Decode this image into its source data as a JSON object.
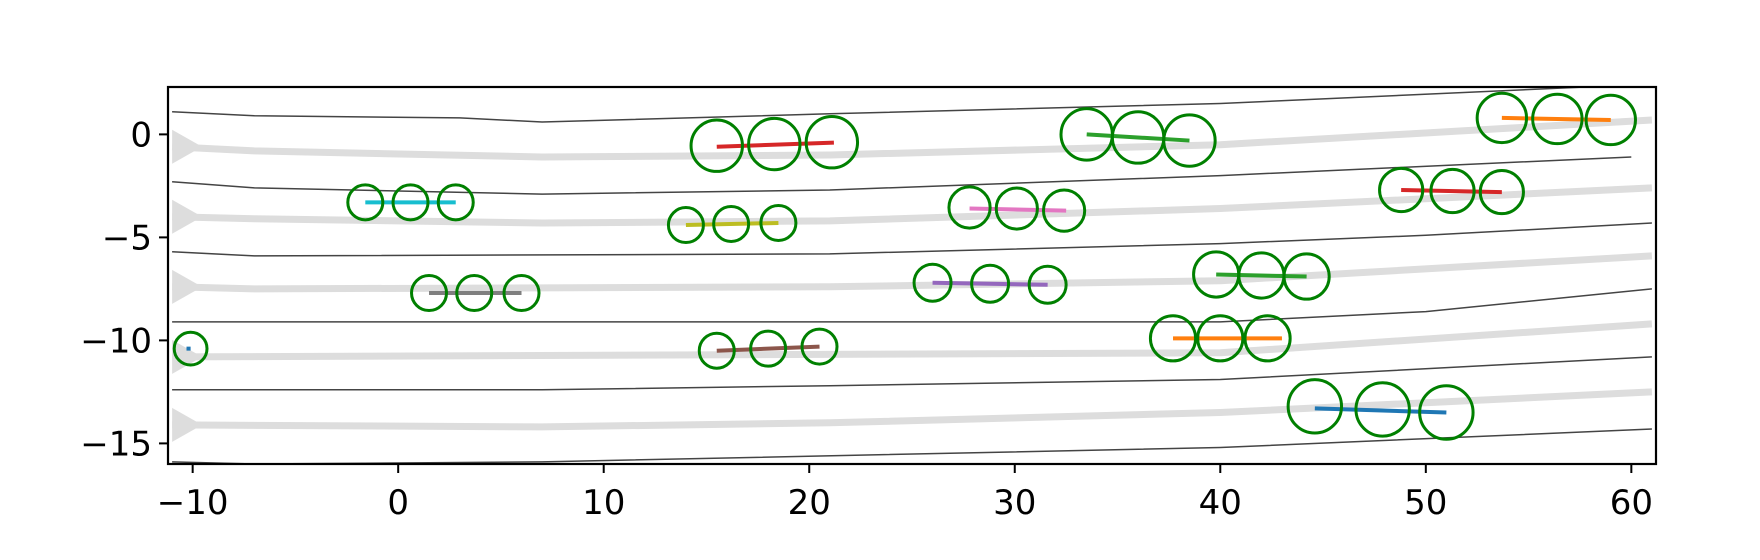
{
  "chart_data": {
    "type": "scatter",
    "title": "",
    "xlabel": "",
    "ylabel": "",
    "xlim": [
      -11.2,
      61.2
    ],
    "ylim": [
      -16.0,
      2.3
    ],
    "grid": false,
    "x_ticks": [
      -10,
      0,
      10,
      20,
      30,
      40,
      50,
      60
    ],
    "x_tick_labels": [
      "−10",
      "0",
      "10",
      "20",
      "30",
      "40",
      "50",
      "60"
    ],
    "y_ticks": [
      0,
      -5,
      -10,
      -15
    ],
    "y_tick_labels": [
      "0",
      "−5",
      "−10",
      "−15"
    ],
    "lane_boundaries": [
      [
        [
          -11,
          1.1
        ],
        [
          -7,
          0.9
        ],
        [
          3,
          0.8
        ],
        [
          7,
          0.6
        ],
        [
          21,
          1.0
        ],
        [
          40,
          1.5
        ],
        [
          60,
          2.4
        ]
      ],
      [
        [
          -11,
          -2.3
        ],
        [
          -7,
          -2.6
        ],
        [
          7,
          -2.9
        ],
        [
          21,
          -2.7
        ],
        [
          40,
          -2.0
        ],
        [
          60,
          -1.1
        ]
      ],
      [
        [
          -11,
          -5.7
        ],
        [
          -7,
          -5.9
        ],
        [
          21,
          -5.8
        ],
        [
          40,
          -5.3
        ],
        [
          50,
          -4.9
        ],
        [
          61,
          -4.3
        ]
      ],
      [
        [
          -11,
          -9.1
        ],
        [
          40,
          -9.1
        ],
        [
          50,
          -8.6
        ],
        [
          61,
          -7.5
        ]
      ],
      [
        [
          -11,
          -12.4
        ],
        [
          7,
          -12.4
        ],
        [
          21,
          -12.2
        ],
        [
          40,
          -11.9
        ],
        [
          61,
          -10.8
        ]
      ],
      [
        [
          -11,
          -15.9
        ],
        [
          -7,
          -16.0
        ],
        [
          7,
          -15.9
        ],
        [
          40,
          -15.2
        ],
        [
          61,
          -14.3
        ]
      ]
    ],
    "lane_centerlines": [
      [
        [
          -11,
          -0.6
        ],
        [
          -7,
          -0.8
        ],
        [
          7,
          -1.1
        ],
        [
          21,
          -1.0
        ],
        [
          40,
          -0.5
        ],
        [
          61,
          0.7
        ]
      ],
      [
        [
          -11,
          -4.0
        ],
        [
          -7,
          -4.1
        ],
        [
          7,
          -4.3
        ],
        [
          21,
          -4.2
        ],
        [
          40,
          -3.6
        ],
        [
          61,
          -2.6
        ]
      ],
      [
        [
          -11,
          -7.4
        ],
        [
          -7,
          -7.5
        ],
        [
          21,
          -7.4
        ],
        [
          40,
          -7.1
        ],
        [
          61,
          -5.9
        ]
      ],
      [
        [
          -11,
          -10.8
        ],
        [
          40,
          -10.6
        ],
        [
          61,
          -9.2
        ]
      ],
      [
        [
          -11,
          -14.1
        ],
        [
          7,
          -14.2
        ],
        [
          21,
          -14.0
        ],
        [
          40,
          -13.5
        ],
        [
          61,
          -12.5
        ]
      ]
    ],
    "lane_arrows_y": [
      -0.6,
      -4.0,
      -7.4,
      -10.8,
      -14.1
    ],
    "series": [
      {
        "color": "#d62728",
        "x": [
          15.5,
          21.2
        ],
        "y": [
          -0.6,
          -0.4
        ],
        "circles": {
          "x": [
            15.5,
            18.3,
            21.1
          ],
          "y": [
            -0.55,
            -0.47,
            -0.38
          ],
          "r": 1.25
        }
      },
      {
        "color": "#2ca02c",
        "x": [
          33.5,
          38.5
        ],
        "y": [
          0.0,
          -0.3
        ],
        "circles": {
          "x": [
            33.5,
            36.0,
            38.5
          ],
          "y": [
            0.0,
            -0.15,
            -0.3
          ],
          "r": 1.25
        }
      },
      {
        "color": "#ff7f0e",
        "x": [
          53.7,
          59.0
        ],
        "y": [
          0.8,
          0.7
        ],
        "circles": {
          "x": [
            53.7,
            56.4,
            59.0
          ],
          "y": [
            0.8,
            0.75,
            0.7
          ],
          "r": 1.2
        }
      },
      {
        "color": "#17becf",
        "x": [
          -1.6,
          2.8
        ],
        "y": [
          -3.3,
          -3.3
        ],
        "circles": {
          "x": [
            -1.6,
            0.6,
            2.8
          ],
          "y": [
            -3.3,
            -3.3,
            -3.3
          ],
          "r": 0.85
        }
      },
      {
        "color": "#bcbd22",
        "x": [
          14.0,
          18.5
        ],
        "y": [
          -4.4,
          -4.3
        ],
        "circles": {
          "x": [
            14.0,
            16.2,
            18.5
          ],
          "y": [
            -4.4,
            -4.35,
            -4.3
          ],
          "r": 0.85
        }
      },
      {
        "color": "#e377c2",
        "x": [
          27.8,
          32.5
        ],
        "y": [
          -3.6,
          -3.7
        ],
        "circles": {
          "x": [
            27.8,
            30.1,
            32.4
          ],
          "y": [
            -3.55,
            -3.6,
            -3.7
          ],
          "r": 1.0
        }
      },
      {
        "color": "#d62728",
        "x": [
          48.8,
          53.7
        ],
        "y": [
          -2.7,
          -2.8
        ],
        "circles": {
          "x": [
            48.8,
            51.3,
            53.7
          ],
          "y": [
            -2.7,
            -2.75,
            -2.8
          ],
          "r": 1.05
        }
      },
      {
        "color": "#7f7f7f",
        "x": [
          1.5,
          6.0
        ],
        "y": [
          -7.7,
          -7.7
        ],
        "circles": {
          "x": [
            1.5,
            3.7,
            6.0
          ],
          "y": [
            -7.7,
            -7.7,
            -7.7
          ],
          "r": 0.85
        }
      },
      {
        "color": "#9467bd",
        "x": [
          26.0,
          31.6
        ],
        "y": [
          -7.2,
          -7.3
        ],
        "circles": {
          "x": [
            26.0,
            28.8,
            31.6
          ],
          "y": [
            -7.2,
            -7.25,
            -7.3
          ],
          "r": 0.9
        }
      },
      {
        "color": "#2ca02c",
        "x": [
          39.8,
          44.2
        ],
        "y": [
          -6.8,
          -6.9
        ],
        "circles": {
          "x": [
            39.8,
            42.0,
            44.2
          ],
          "y": [
            -6.8,
            -6.85,
            -6.9
          ],
          "r": 1.1
        }
      },
      {
        "color": "#8c564b",
        "x": [
          15.5,
          20.5
        ],
        "y": [
          -10.5,
          -10.3
        ],
        "circles": {
          "x": [
            15.5,
            18.0,
            20.5
          ],
          "y": [
            -10.5,
            -10.4,
            -10.3
          ],
          "r": 0.85
        }
      },
      {
        "color": "#ff7f0e",
        "x": [
          37.7,
          43.0
        ],
        "y": [
          -9.9,
          -9.9
        ],
        "circles": {
          "x": [
            37.7,
            40.0,
            42.3
          ],
          "y": [
            -9.9,
            -9.9,
            -9.9
          ],
          "r": 1.1
        }
      },
      {
        "color": "#1f77b4",
        "x": [
          -10.3,
          -10.1
        ],
        "y": [
          -10.4,
          -10.4
        ],
        "circles": {
          "x": [
            -10.1
          ],
          "y": [
            -10.4
          ],
          "r": 0.8
        }
      },
      {
        "color": "#1f77b4",
        "x": [
          44.6,
          51.0
        ],
        "y": [
          -13.3,
          -13.5
        ],
        "circles": {
          "x": [
            44.6,
            47.9,
            51.0
          ],
          "y": [
            -13.2,
            -13.35,
            -13.5
          ],
          "r": 1.3
        }
      }
    ]
  }
}
